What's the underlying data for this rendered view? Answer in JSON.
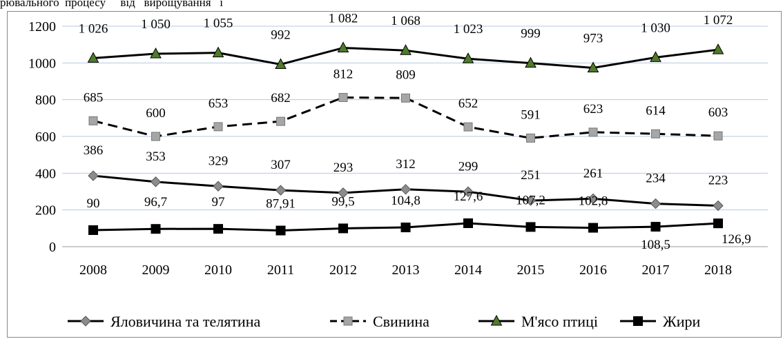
{
  "header_fragment": "рювального  процесу     від   вирощування   і",
  "chart_data": {
    "type": "line",
    "categories": [
      "2008",
      "2009",
      "2010",
      "2011",
      "2012",
      "2013",
      "2014",
      "2015",
      "2016",
      "2017",
      "2018"
    ],
    "ylim": [
      0,
      1200
    ],
    "yticks": [
      0,
      200,
      400,
      600,
      800,
      1000,
      1200
    ],
    "grid": true,
    "legend_position": "bottom",
    "series": [
      {
        "name": "Яловичина та телятина",
        "values": [
          386,
          353,
          329,
          307,
          293,
          312,
          299,
          251,
          261,
          234,
          223
        ],
        "labels": [
          "386",
          "353",
          "329",
          "307",
          "293",
          "312",
          "299",
          "251",
          "261",
          "234",
          "223"
        ],
        "color": "#000000",
        "marker": "diamond",
        "marker_color": "#8c8c8c",
        "dash": "solid"
      },
      {
        "name": "Свинина",
        "values": [
          685,
          600,
          653,
          682,
          812,
          809,
          652,
          591,
          623,
          614,
          603
        ],
        "labels": [
          "685",
          "600",
          "653",
          "682",
          "812",
          "809",
          "652",
          "591",
          "623",
          "614",
          "603"
        ],
        "color": "#000000",
        "marker": "square",
        "marker_color": "#a6a6a6",
        "dash": "dashed"
      },
      {
        "name": "М'ясо птиці",
        "values": [
          1026,
          1050,
          1055,
          992,
          1082,
          1068,
          1023,
          999,
          973,
          1030,
          1072
        ],
        "labels": [
          "1 026",
          "1 050",
          "1 055",
          "992",
          "1 082",
          "1 068",
          "1 023",
          "999",
          "973",
          "1 030",
          "1 072"
        ],
        "color": "#000000",
        "marker": "triangle",
        "marker_color": "#4f7a28",
        "dash": "solid"
      },
      {
        "name": "Жири",
        "values": [
          90,
          96.7,
          97,
          87.91,
          99.5,
          104.8,
          127.6,
          107.2,
          102.8,
          108.5,
          126.9
        ],
        "labels": [
          "90",
          "96,7",
          "97",
          "87,91",
          "99,5",
          "104,8",
          "127,6",
          "107,2",
          "102,8",
          "108,5",
          "126,9"
        ],
        "color": "#000000",
        "marker": "square",
        "marker_color": "#000000",
        "dash": "solid"
      }
    ]
  }
}
